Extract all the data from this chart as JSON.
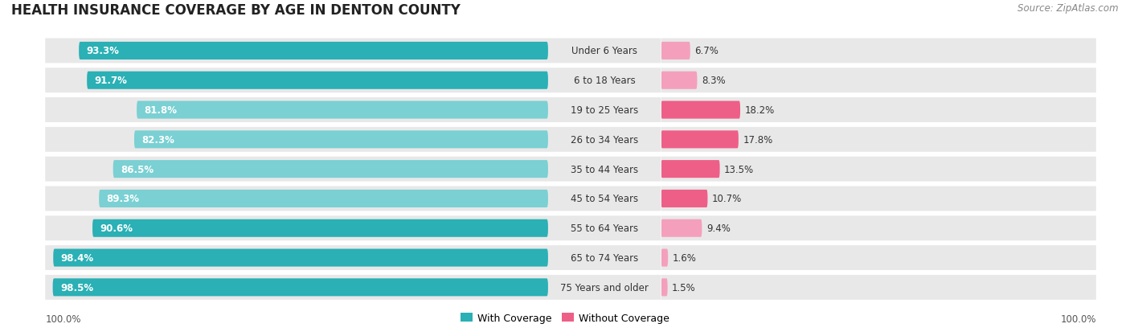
{
  "title": "HEALTH INSURANCE COVERAGE BY AGE IN DENTON COUNTY",
  "source": "Source: ZipAtlas.com",
  "categories": [
    "Under 6 Years",
    "6 to 18 Years",
    "19 to 25 Years",
    "26 to 34 Years",
    "35 to 44 Years",
    "45 to 54 Years",
    "55 to 64 Years",
    "65 to 74 Years",
    "75 Years and older"
  ],
  "with_coverage": [
    93.3,
    91.7,
    81.8,
    82.3,
    86.5,
    89.3,
    90.6,
    98.4,
    98.5
  ],
  "without_coverage": [
    6.7,
    8.3,
    18.2,
    17.8,
    13.5,
    10.7,
    9.4,
    1.6,
    1.5
  ],
  "color_with_dark": "#2ab0b5",
  "color_with_light": "#7ad0d3",
  "color_without_high": "#ee5f88",
  "color_without_low": "#f4a0bc",
  "row_bg": "#e8e8e8",
  "title_fontsize": 12,
  "label_fontsize": 8.5,
  "legend_fontsize": 9,
  "source_fontsize": 8.5,
  "axis_label_fontsize": 8.5,
  "figure_bg": "#ffffff",
  "with_coverage_threshold": 90.0,
  "without_coverage_threshold": 10.0
}
